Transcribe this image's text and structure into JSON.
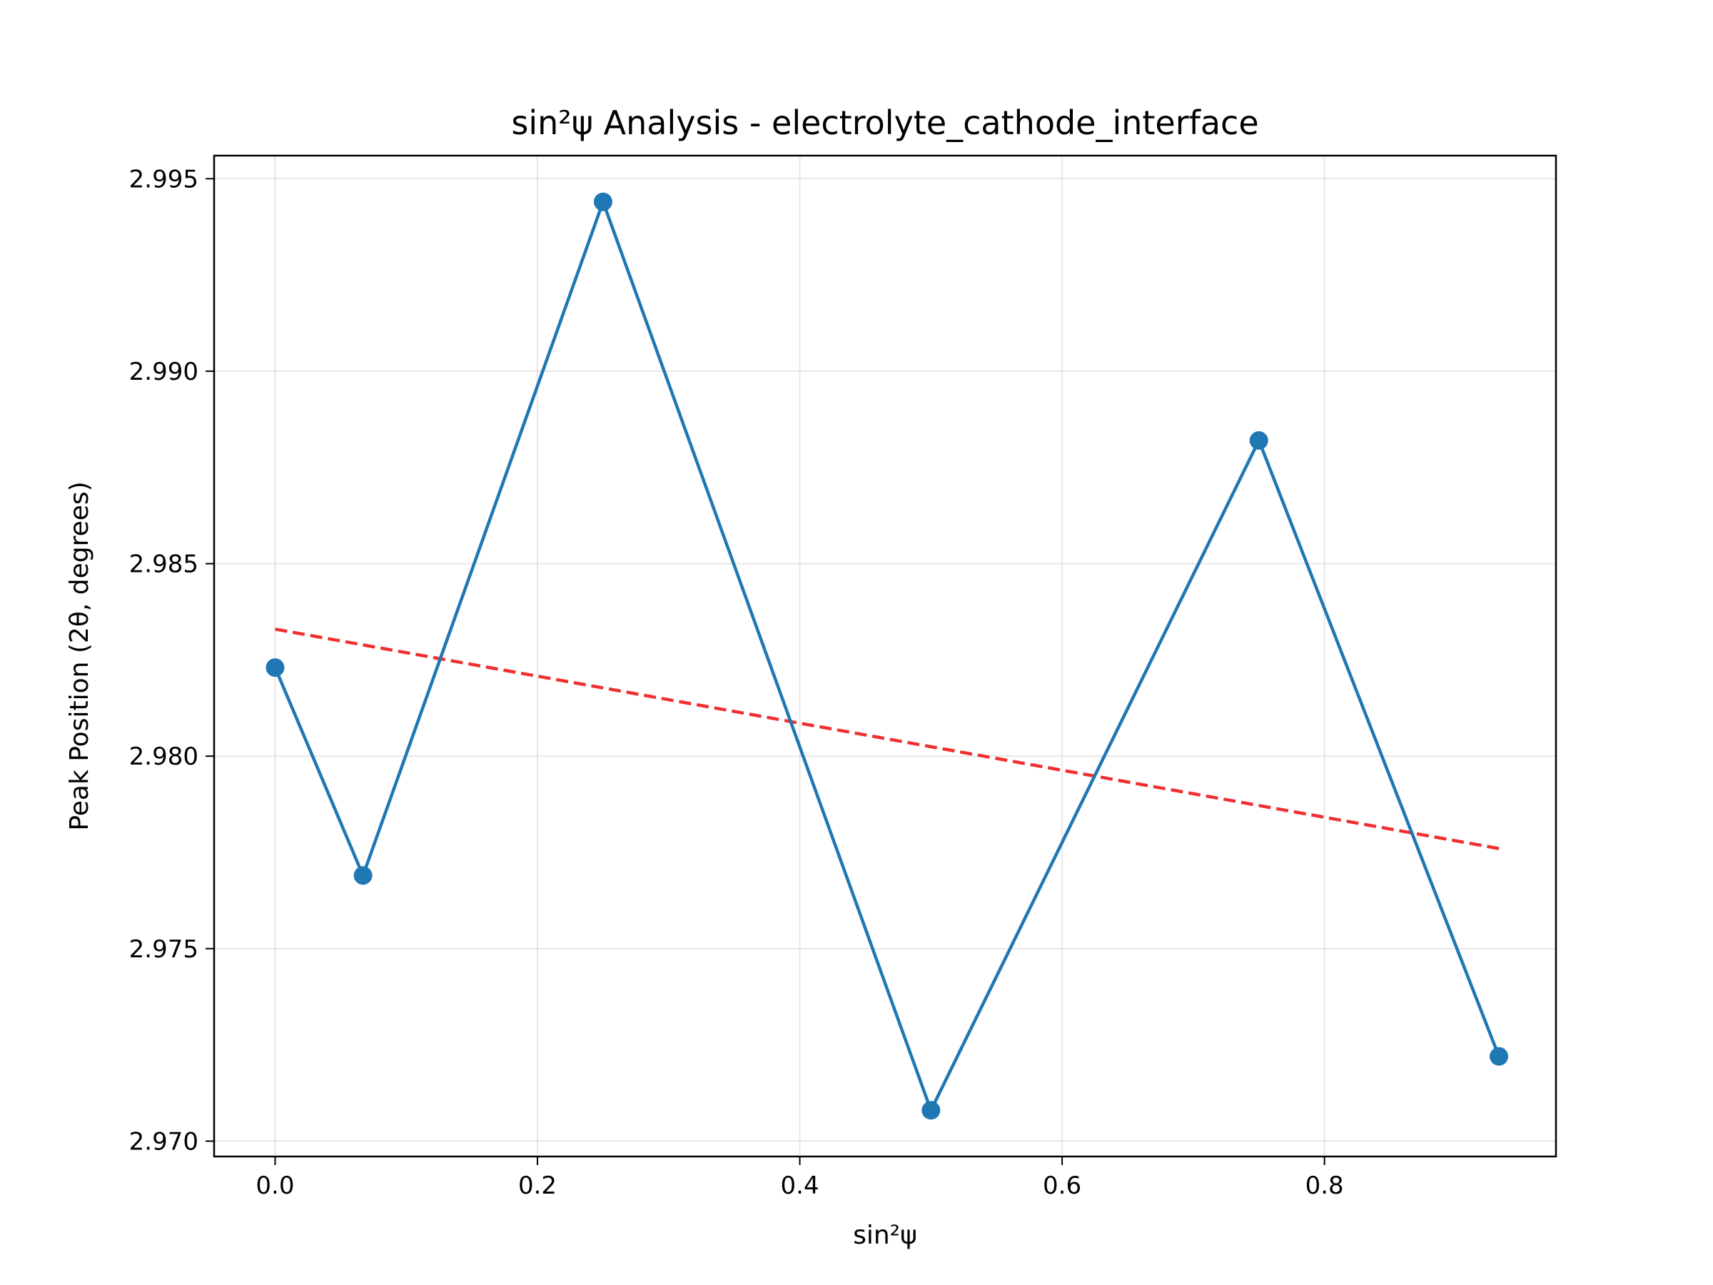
{
  "chart_data": {
    "type": "line",
    "title": "sin²ψ Analysis - electrolyte_cathode_interface",
    "xlabel": "sin²ψ",
    "ylabel": "Peak Position (2θ, degrees)",
    "xlim": [
      -0.0465,
      0.9765
    ],
    "ylim": [
      2.9696,
      2.9956
    ],
    "xticks": [
      0.0,
      0.2,
      0.4,
      0.6,
      0.8
    ],
    "xtick_labels": [
      "0.0",
      "0.2",
      "0.4",
      "0.6",
      "0.8"
    ],
    "yticks": [
      2.97,
      2.975,
      2.98,
      2.985,
      2.99,
      2.995
    ],
    "ytick_labels": [
      "2.970",
      "2.975",
      "2.980",
      "2.985",
      "2.990",
      "2.995"
    ],
    "grid": true,
    "series": [
      {
        "style": "line-marker",
        "color": "#1f77b4",
        "x": [
          0.0,
          0.067,
          0.25,
          0.5,
          0.75,
          0.933
        ],
        "y": [
          2.9823,
          2.9769,
          2.9944,
          2.9708,
          2.9882,
          2.9722
        ]
      },
      {
        "style": "dashed",
        "color": "#f03030",
        "x": [
          0.0,
          0.933
        ],
        "y": [
          2.9833,
          2.9776
        ]
      }
    ]
  }
}
